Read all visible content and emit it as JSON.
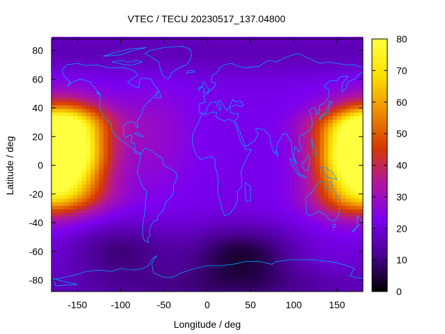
{
  "chart_data": {
    "type": "heatmap",
    "title": "VTEC / TECU 20230517_137.04800",
    "xlabel": "Longitude / deg",
    "ylabel": "Latitude / deg",
    "xlim": [
      -180,
      180
    ],
    "ylim": [
      -88,
      88
    ],
    "x_ticks": [
      -150,
      -100,
      -50,
      0,
      50,
      100,
      150
    ],
    "y_ticks": [
      -80,
      -60,
      -40,
      -20,
      0,
      20,
      40,
      60,
      80
    ],
    "colorbar": {
      "range": [
        0,
        80
      ],
      "ticks": [
        0,
        10,
        20,
        30,
        40,
        50,
        60,
        70,
        80
      ],
      "palette": [
        "#000000",
        "#4a0091",
        "#7c00f0",
        "#b0169e",
        "#d73a00",
        "#ef8f00",
        "#fae100",
        "#ffff40"
      ]
    },
    "field": {
      "background_tecu": 22,
      "crests": [
        {
          "lon": -160,
          "lat": 10,
          "peak_tecu": 76
        },
        {
          "lon": 170,
          "lat": 5,
          "peak_tecu": 74
        }
      ],
      "low_regions": [
        {
          "lon": 40,
          "lat": -62,
          "min_tecu": 5
        },
        {
          "lon": -100,
          "lat": -60,
          "min_tecu": 10
        }
      ]
    },
    "overlay": "coastlines",
    "overlay_color": "#00a6ff",
    "grid": false,
    "legend": "colorbar-right"
  }
}
